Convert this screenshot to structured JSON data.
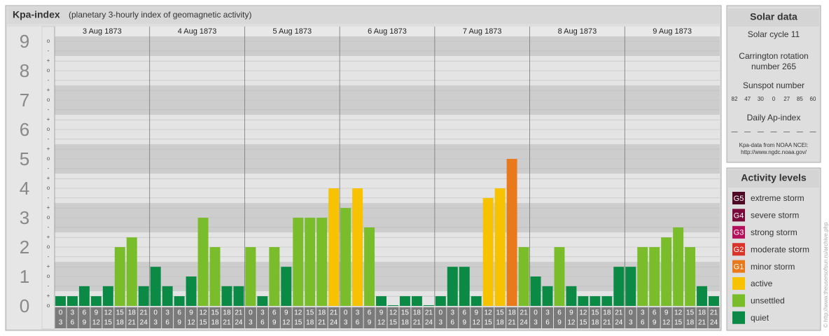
{
  "title": "Kpa-index",
  "subtitle": "(planetary 3-hourly index of geomagnetic activity)",
  "chart_data": {
    "type": "bar",
    "ylim": [
      0,
      9
    ],
    "yticks": [
      0,
      1,
      2,
      3,
      4,
      5,
      6,
      7,
      8,
      9
    ],
    "minor_ticks": [
      {
        "value": 0,
        "label": "o"
      },
      {
        "value": 0.33,
        "label": "+"
      },
      {
        "value": 0.67,
        "label": "-"
      },
      {
        "value": 1,
        "label": "o"
      },
      {
        "value": 1.33,
        "label": "+"
      },
      {
        "value": 1.67,
        "label": "-"
      },
      {
        "value": 2,
        "label": "o"
      },
      {
        "value": 2.33,
        "label": "+"
      },
      {
        "value": 2.67,
        "label": "-"
      },
      {
        "value": 3,
        "label": "o"
      },
      {
        "value": 3.33,
        "label": "+"
      },
      {
        "value": 3.67,
        "label": "-"
      },
      {
        "value": 4,
        "label": "o"
      },
      {
        "value": 4.33,
        "label": "+"
      },
      {
        "value": 4.67,
        "label": "-"
      },
      {
        "value": 5,
        "label": "o"
      },
      {
        "value": 5.33,
        "label": "+"
      },
      {
        "value": 5.67,
        "label": "-"
      },
      {
        "value": 6,
        "label": "o"
      },
      {
        "value": 6.33,
        "label": "+"
      },
      {
        "value": 6.67,
        "label": "-"
      },
      {
        "value": 7,
        "label": "o"
      },
      {
        "value": 7.33,
        "label": "+"
      },
      {
        "value": 7.67,
        "label": "-"
      },
      {
        "value": 8,
        "label": "o"
      },
      {
        "value": 8.33,
        "label": "+"
      },
      {
        "value": 8.67,
        "label": "-"
      },
      {
        "value": 9,
        "label": "o"
      }
    ],
    "hours": [
      [
        "0",
        "3"
      ],
      [
        "3",
        "6"
      ],
      [
        "6",
        "9"
      ],
      [
        "9",
        "12"
      ],
      [
        "12",
        "15"
      ],
      [
        "15",
        "18"
      ],
      [
        "18",
        "21"
      ],
      [
        "21",
        "24"
      ]
    ],
    "days": [
      {
        "label": "3 Aug 1873",
        "values": [
          0.33,
          0.33,
          0.67,
          0.33,
          0.67,
          2,
          2.33,
          0.67
        ],
        "colors": [
          "#0b8a45",
          "#0b8a45",
          "#0b8a45",
          "#0b8a45",
          "#0b8a45",
          "#7abd2a",
          "#7abd2a",
          "#0b8a45"
        ]
      },
      {
        "label": "4 Aug 1873",
        "values": [
          1.33,
          0.67,
          0.33,
          1,
          3,
          2,
          0.67,
          0.67
        ],
        "colors": [
          "#0b8a45",
          "#0b8a45",
          "#0b8a45",
          "#0b8a45",
          "#7abd2a",
          "#7abd2a",
          "#0b8a45",
          "#0b8a45"
        ]
      },
      {
        "label": "5 Aug 1873",
        "values": [
          2,
          0.33,
          2,
          1.33,
          3,
          3,
          3,
          4
        ],
        "colors": [
          "#7abd2a",
          "#0b8a45",
          "#7abd2a",
          "#0b8a45",
          "#7abd2a",
          "#7abd2a",
          "#7abd2a",
          "#f7c300"
        ]
      },
      {
        "label": "6 Aug 1873",
        "values": [
          3.33,
          4,
          2.67,
          0.33,
          0,
          0.33,
          0.33,
          0
        ],
        "colors": [
          "#7abd2a",
          "#f7c300",
          "#7abd2a",
          "#0b8a45",
          "#0b8a45",
          "#0b8a45",
          "#0b8a45",
          "#0b8a45"
        ]
      },
      {
        "label": "7 Aug 1873",
        "values": [
          0.33,
          1.33,
          1.33,
          0.33,
          3.67,
          4,
          5,
          2
        ],
        "colors": [
          "#0b8a45",
          "#0b8a45",
          "#0b8a45",
          "#0b8a45",
          "#f7c300",
          "#f7c300",
          "#e87a1c",
          "#7abd2a"
        ]
      },
      {
        "label": "8 Aug 1873",
        "values": [
          1,
          0.67,
          2,
          0.67,
          0.33,
          0.33,
          0.33,
          1.33
        ],
        "colors": [
          "#0b8a45",
          "#0b8a45",
          "#7abd2a",
          "#0b8a45",
          "#0b8a45",
          "#0b8a45",
          "#0b8a45",
          "#0b8a45"
        ]
      },
      {
        "label": "9 Aug 1873",
        "values": [
          1.33,
          2,
          2,
          2.33,
          2.67,
          2,
          0.67,
          0.33
        ],
        "colors": [
          "#0b8a45",
          "#7abd2a",
          "#7abd2a",
          "#7abd2a",
          "#7abd2a",
          "#7abd2a",
          "#0b8a45",
          "#0b8a45"
        ]
      }
    ]
  },
  "solar_data": {
    "title": "Solar data",
    "cycle": "Solar cycle 11",
    "carrington": [
      "Carrington rotation",
      "number 265"
    ],
    "sunspot_title": "Sunspot number",
    "sunspots": [
      82,
      47,
      30,
      0,
      27,
      85,
      60
    ],
    "ap_title": "Daily Ap-index",
    "ap": [
      "—",
      "—",
      "—",
      "—",
      "—",
      "—",
      "—"
    ],
    "source": [
      "Kpa-data from NOAA NCEI:",
      "http://www.ngdc.noaa.gov/"
    ]
  },
  "activity": {
    "title": "Activity levels",
    "levels": [
      {
        "code": "G5",
        "name": "extreme storm",
        "color": "#4e0a24"
      },
      {
        "code": "G4",
        "name": "severe storm",
        "color": "#7a0a3c"
      },
      {
        "code": "G3",
        "name": "strong storm",
        "color": "#b3105c"
      },
      {
        "code": "G2",
        "name": "moderate storm",
        "color": "#d8342a"
      },
      {
        "code": "G1",
        "name": "minor storm",
        "color": "#e87a1c"
      },
      {
        "name": "active",
        "color": "#f7c300"
      },
      {
        "name": "unsettled",
        "color": "#7abd2a"
      },
      {
        "name": "quiet",
        "color": "#0b8a45"
      }
    ]
  },
  "copyright": "© http://www.theusersofsun.ru/archive.php"
}
